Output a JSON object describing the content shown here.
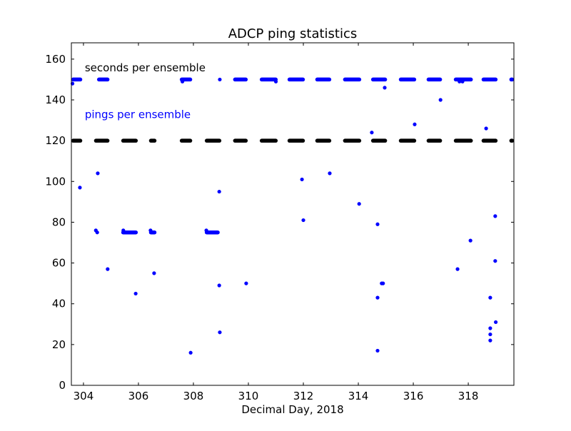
{
  "chart_data": {
    "type": "scatter",
    "title": "ADCP  ping statistics",
    "xlabel": "Decimal Day, 2018",
    "ylabel": "",
    "xlim": [
      303.56,
      319.66
    ],
    "ylim": [
      0,
      168
    ],
    "xticks": [
      304,
      306,
      308,
      310,
      312,
      314,
      316,
      318
    ],
    "yticks": [
      0,
      20,
      40,
      60,
      80,
      100,
      120,
      140,
      160
    ],
    "grid": false,
    "annotations": [
      {
        "text": "seconds per ensemble",
        "x": 304.05,
        "y": 154,
        "color": "#000000"
      },
      {
        "text": "pings per ensemble",
        "x": 304.05,
        "y": 131,
        "color": "#0000ff"
      }
    ],
    "series": [
      {
        "name": "seconds per ensemble",
        "color": "#000000",
        "value": 120,
        "dense_ranges": [
          [
            303.56,
            303.95
          ],
          [
            304.39,
            304.94
          ],
          [
            305.38,
            305.97
          ],
          [
            306.39,
            306.65
          ],
          [
            307.51,
            307.95
          ],
          [
            308.42,
            309.01
          ],
          [
            309.45,
            309.97
          ],
          [
            310.42,
            311.06
          ],
          [
            311.43,
            312.05
          ],
          [
            312.44,
            313.01
          ],
          [
            313.45,
            314.1
          ],
          [
            314.47,
            315.04
          ],
          [
            315.48,
            316.1
          ],
          [
            316.49,
            317.04
          ],
          [
            317.48,
            318.16
          ],
          [
            318.49,
            319.06
          ],
          [
            319.5,
            319.66
          ]
        ]
      },
      {
        "name": "pings per ensemble",
        "color": "#0000ff",
        "dense_ranges": [
          {
            "value": 150,
            "range": [
              303.56,
              303.95
            ]
          },
          {
            "value": 150,
            "range": [
              304.5,
              304.94
            ]
          },
          {
            "value": 75,
            "range": [
              305.38,
              305.97
            ]
          },
          {
            "value": 75,
            "range": [
              306.39,
              306.65
            ]
          },
          {
            "value": 150,
            "range": [
              307.51,
              307.95
            ]
          },
          {
            "value": 75,
            "range": [
              308.42,
              308.95
            ]
          },
          {
            "value": 150,
            "range": [
              309.45,
              309.97
            ]
          },
          {
            "value": 150,
            "range": [
              310.42,
              311.06
            ]
          },
          {
            "value": 150,
            "range": [
              311.43,
              312.05
            ]
          },
          {
            "value": 150,
            "range": [
              312.44,
              313.01
            ]
          },
          {
            "value": 150,
            "range": [
              313.45,
              314.1
            ]
          },
          {
            "value": 150,
            "range": [
              314.47,
              315.04
            ]
          },
          {
            "value": 150,
            "range": [
              315.48,
              316.1
            ]
          },
          {
            "value": 150,
            "range": [
              316.49,
              317.04
            ]
          },
          {
            "value": 150,
            "range": [
              317.48,
              318.16
            ]
          },
          {
            "value": 150,
            "range": [
              318.49,
              319.06
            ]
          },
          {
            "value": 150,
            "range": [
              319.5,
              319.66
            ]
          }
        ],
        "points": [
          [
            303.6,
            148
          ],
          [
            303.87,
            97
          ],
          [
            304.52,
            104
          ],
          [
            304.45,
            76
          ],
          [
            304.5,
            75
          ],
          [
            304.88,
            57
          ],
          [
            305.9,
            45
          ],
          [
            306.57,
            55
          ],
          [
            306.44,
            76
          ],
          [
            305.45,
            76
          ],
          [
            307.6,
            149
          ],
          [
            307.9,
            16
          ],
          [
            308.47,
            76
          ],
          [
            308.96,
            150
          ],
          [
            308.94,
            95
          ],
          [
            308.94,
            49
          ],
          [
            308.96,
            26
          ],
          [
            309.92,
            50
          ],
          [
            311.0,
            149
          ],
          [
            311.95,
            101
          ],
          [
            312.0,
            81
          ],
          [
            312.96,
            104
          ],
          [
            314.03,
            89
          ],
          [
            314.49,
            124
          ],
          [
            314.96,
            146
          ],
          [
            314.7,
            79
          ],
          [
            314.7,
            43
          ],
          [
            314.7,
            17
          ],
          [
            314.85,
            50
          ],
          [
            314.9,
            50
          ],
          [
            316.05,
            128
          ],
          [
            316.99,
            140
          ],
          [
            317.61,
            57
          ],
          [
            317.68,
            149
          ],
          [
            317.79,
            149
          ],
          [
            318.08,
            71
          ],
          [
            318.65,
            126
          ],
          [
            318.8,
            43
          ],
          [
            318.8,
            28
          ],
          [
            318.8,
            25
          ],
          [
            318.8,
            22
          ],
          [
            318.98,
            83
          ],
          [
            318.98,
            61
          ],
          [
            319.0,
            31
          ]
        ]
      }
    ]
  }
}
